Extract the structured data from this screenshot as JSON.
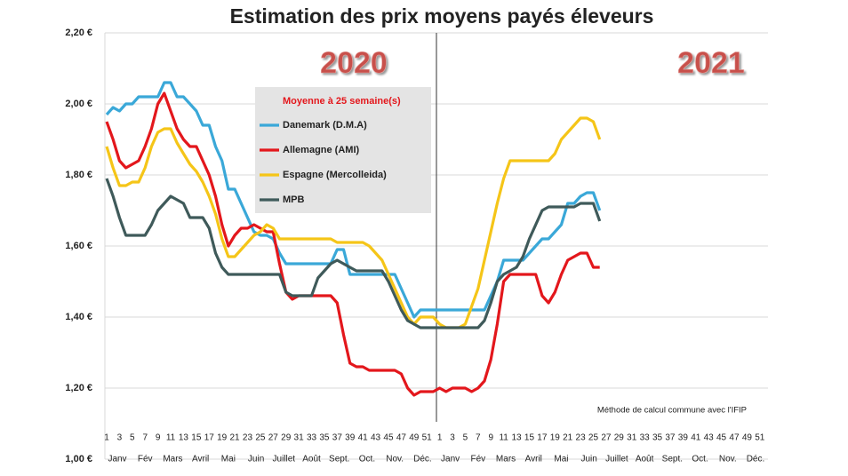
{
  "chart_data": {
    "type": "line",
    "title": "Estimation des prix moyens payés éleveurs",
    "annotations": [
      "2020",
      "2021"
    ],
    "note": "Méthode de calcul commune avec l'IFIP",
    "legend_title": "Moyenne à  25 semaine(s)",
    "categories": [
      "1",
      null,
      "3",
      null,
      "5",
      null,
      "7",
      null,
      "9",
      null,
      "11",
      null,
      "13",
      null,
      "15",
      null,
      "17",
      null,
      "19",
      null,
      "21",
      null,
      "23",
      null,
      "25",
      null,
      "27",
      null,
      "29",
      null,
      "31",
      null,
      "33",
      null,
      "35",
      null,
      "37",
      null,
      "39",
      null,
      "41",
      null,
      "43",
      null,
      "45",
      null,
      "47",
      null,
      "49",
      null,
      "51",
      null,
      "1",
      null,
      "3",
      null,
      "5",
      null,
      "7",
      null,
      "9",
      null,
      "11",
      null,
      "13",
      null,
      "15",
      null,
      "17",
      null,
      "19",
      null,
      "21",
      null,
      "23",
      null,
      "25",
      null,
      "27",
      null,
      "29",
      null,
      "31",
      null,
      "33",
      null,
      "35",
      null,
      "37",
      null,
      "39",
      null,
      "41",
      null,
      "43",
      null,
      "45",
      null,
      "47",
      null,
      "49",
      null,
      "51",
      null
    ],
    "months": [
      "Janv",
      "Fév",
      "Mars",
      "Avril",
      "Mai",
      "Juin",
      "Juillet",
      "Août",
      "Sept.",
      "Oct.",
      "Nov.",
      "Déc.",
      "Janv",
      "Fév",
      "Mars",
      "Avril",
      "Mai",
      "Juin",
      "Juillet",
      "Août",
      "Sept.",
      "Oct.",
      "Nov.",
      "Déc."
    ],
    "series": [
      {
        "name": "Danemark (D.M.A)",
        "color": "#3aa8d8",
        "values": [
          1.97,
          1.99,
          1.98,
          2.0,
          2.0,
          2.02,
          2.02,
          2.02,
          2.02,
          2.06,
          2.06,
          2.02,
          2.02,
          2.0,
          1.98,
          1.94,
          1.94,
          1.88,
          1.84,
          1.76,
          1.76,
          1.72,
          1.68,
          1.64,
          1.63,
          1.63,
          1.62,
          1.58,
          1.55,
          1.55,
          1.55,
          1.55,
          1.55,
          1.55,
          1.55,
          1.55,
          1.59,
          1.59,
          1.52,
          1.52,
          1.52,
          1.52,
          1.52,
          1.52,
          1.52,
          1.52,
          1.48,
          1.44,
          1.4,
          1.42,
          1.42,
          1.42,
          1.42,
          1.42,
          1.42,
          1.42,
          1.42,
          1.42,
          1.42,
          1.42,
          1.46,
          1.5,
          1.56,
          1.56,
          1.56,
          1.56,
          1.58,
          1.6,
          1.62,
          1.62,
          1.64,
          1.66,
          1.72,
          1.72,
          1.74,
          1.75,
          1.75,
          1.7,
          null,
          null,
          null,
          null,
          null,
          null,
          null,
          null,
          null,
          null,
          null,
          null,
          null,
          null,
          null,
          null,
          null,
          null,
          null,
          null,
          null,
          null,
          null,
          null,
          null,
          null
        ]
      },
      {
        "name": "Allemagne (AMI)",
        "color": "#e3171c",
        "values": [
          1.95,
          1.9,
          1.84,
          1.82,
          1.83,
          1.84,
          1.88,
          1.93,
          2.0,
          2.03,
          1.98,
          1.93,
          1.9,
          1.88,
          1.88,
          1.84,
          1.8,
          1.74,
          1.66,
          1.6,
          1.63,
          1.65,
          1.65,
          1.66,
          1.65,
          1.64,
          1.64,
          1.55,
          1.47,
          1.45,
          1.46,
          1.46,
          1.46,
          1.46,
          1.46,
          1.46,
          1.44,
          1.35,
          1.27,
          1.26,
          1.26,
          1.25,
          1.25,
          1.25,
          1.25,
          1.25,
          1.24,
          1.2,
          1.18,
          1.19,
          1.19,
          1.19,
          1.2,
          1.19,
          1.2,
          1.2,
          1.2,
          1.19,
          1.2,
          1.22,
          1.28,
          1.38,
          1.5,
          1.52,
          1.52,
          1.52,
          1.52,
          1.52,
          1.46,
          1.44,
          1.47,
          1.52,
          1.56,
          1.57,
          1.58,
          1.58,
          1.54,
          1.54,
          null,
          null,
          null,
          null,
          null,
          null,
          null,
          null,
          null,
          null,
          null,
          null,
          null,
          null,
          null,
          null,
          null,
          null,
          null,
          null,
          null,
          null,
          null,
          null,
          null,
          null
        ]
      },
      {
        "name": "Espagne (Mercolleida)",
        "color": "#f5c518",
        "values": [
          1.88,
          1.82,
          1.77,
          1.77,
          1.78,
          1.78,
          1.82,
          1.88,
          1.92,
          1.93,
          1.93,
          1.89,
          1.86,
          1.83,
          1.81,
          1.78,
          1.74,
          1.69,
          1.62,
          1.57,
          1.57,
          1.59,
          1.61,
          1.63,
          1.64,
          1.66,
          1.65,
          1.62,
          1.62,
          1.62,
          1.62,
          1.62,
          1.62,
          1.62,
          1.62,
          1.62,
          1.61,
          1.61,
          1.61,
          1.61,
          1.61,
          1.6,
          1.58,
          1.56,
          1.52,
          1.48,
          1.44,
          1.4,
          1.38,
          1.4,
          1.4,
          1.4,
          1.38,
          1.37,
          1.37,
          1.37,
          1.38,
          1.43,
          1.48,
          1.56,
          1.64,
          1.72,
          1.79,
          1.84,
          1.84,
          1.84,
          1.84,
          1.84,
          1.84,
          1.84,
          1.86,
          1.9,
          1.92,
          1.94,
          1.96,
          1.96,
          1.95,
          1.9,
          null,
          null,
          null,
          null,
          null,
          null,
          null,
          null,
          null,
          null,
          null,
          null,
          null,
          null,
          null,
          null,
          null,
          null,
          null,
          null,
          null,
          null,
          null,
          null,
          null,
          null
        ]
      },
      {
        "name": "MPB",
        "color": "#3f5a5a",
        "values": [
          1.79,
          1.74,
          1.68,
          1.63,
          1.63,
          1.63,
          1.63,
          1.66,
          1.7,
          1.72,
          1.74,
          1.73,
          1.72,
          1.68,
          1.68,
          1.68,
          1.65,
          1.58,
          1.54,
          1.52,
          1.52,
          1.52,
          1.52,
          1.52,
          1.52,
          1.52,
          1.52,
          1.52,
          1.47,
          1.46,
          1.46,
          1.46,
          1.46,
          1.51,
          1.53,
          1.55,
          1.56,
          1.55,
          1.54,
          1.53,
          1.53,
          1.53,
          1.53,
          1.53,
          1.5,
          1.46,
          1.42,
          1.39,
          1.38,
          1.37,
          1.37,
          1.37,
          1.37,
          1.37,
          1.37,
          1.37,
          1.37,
          1.37,
          1.37,
          1.39,
          1.44,
          1.5,
          1.52,
          1.53,
          1.54,
          1.57,
          1.62,
          1.66,
          1.7,
          1.71,
          1.71,
          1.71,
          1.71,
          1.71,
          1.72,
          1.72,
          1.72,
          1.67,
          null,
          null,
          null,
          null,
          null,
          null,
          null,
          null,
          null,
          null,
          null,
          null,
          null,
          null,
          null,
          null,
          null,
          null,
          null,
          null,
          null,
          null,
          null,
          null,
          null,
          null
        ]
      }
    ],
    "ylim": [
      1.0,
      2.2
    ],
    "yticks": [
      {
        "value": 1.0,
        "label": "1,00 €"
      },
      {
        "value": 1.2,
        "label": "1,20 €"
      },
      {
        "value": 1.4,
        "label": "1,40 €"
      },
      {
        "value": 1.6,
        "label": "1,60 €"
      },
      {
        "value": 1.8,
        "label": "1,80 €"
      },
      {
        "value": 2.0,
        "label": "2,00 €"
      },
      {
        "value": 2.2,
        "label": "2,20 €"
      }
    ],
    "grid": true
  }
}
